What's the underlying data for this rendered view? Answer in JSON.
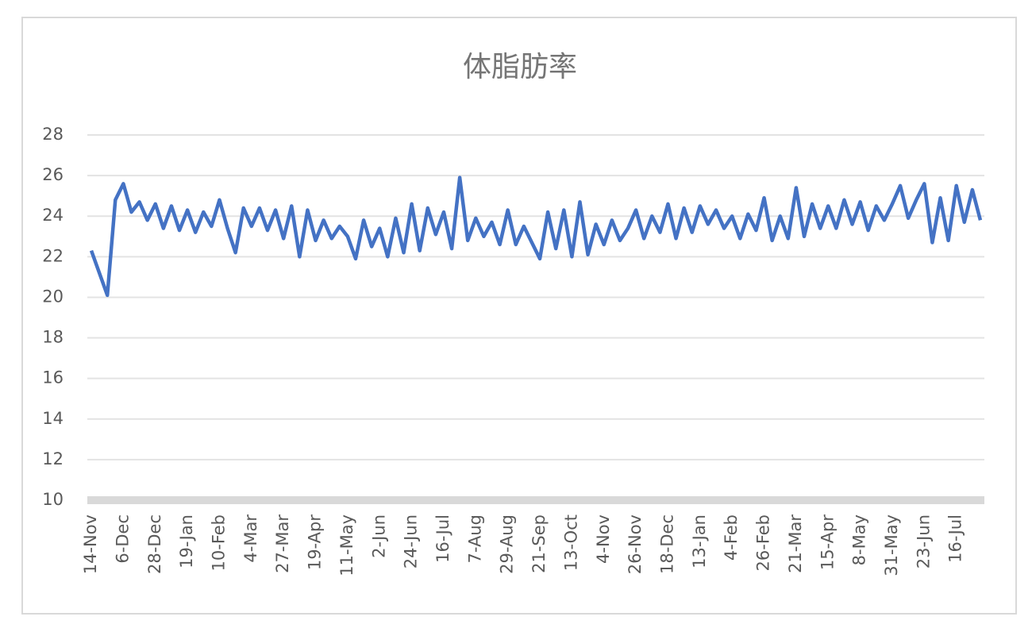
{
  "chart_data": {
    "type": "line",
    "title": "体脂肪率",
    "categories": [
      "14-Nov",
      null,
      null,
      null,
      "6-Dec",
      null,
      null,
      null,
      "28-Dec",
      null,
      null,
      null,
      "19-Jan",
      null,
      null,
      null,
      "10-Feb",
      null,
      null,
      null,
      "4-Mar",
      null,
      null,
      null,
      "27-Mar",
      null,
      null,
      null,
      "19-Apr",
      null,
      null,
      null,
      "11-May",
      null,
      null,
      null,
      "2-Jun",
      null,
      null,
      null,
      "24-Jun",
      null,
      null,
      null,
      "16-Jul",
      null,
      null,
      null,
      "7-Aug",
      null,
      null,
      null,
      "29-Aug",
      null,
      null,
      null,
      "21-Sep",
      null,
      null,
      null,
      "13-Oct",
      null,
      null,
      null,
      "4-Nov",
      null,
      null,
      null,
      "26-Nov",
      null,
      null,
      null,
      "18-Dec",
      null,
      null,
      null,
      "13-Jan",
      null,
      null,
      null,
      "4-Feb",
      null,
      null,
      null,
      "26-Feb",
      null,
      null,
      null,
      "21-Mar",
      null,
      null,
      null,
      "15-Apr",
      null,
      null,
      null,
      "8-May",
      null,
      null,
      null,
      "31-May",
      null,
      null,
      null,
      "23-Jun",
      null,
      null,
      null,
      "16-Jul",
      null,
      null,
      null
    ],
    "series": [
      {
        "color": "#4472c4",
        "values": [
          22.3,
          21.2,
          20.1,
          24.8,
          25.6,
          24.2,
          24.7,
          23.8,
          24.6,
          23.4,
          24.5,
          23.3,
          24.3,
          23.2,
          24.2,
          23.5,
          24.8,
          23.4,
          22.2,
          24.4,
          23.5,
          24.4,
          23.3,
          24.3,
          22.9,
          24.5,
          22.0,
          24.3,
          22.8,
          23.8,
          22.9,
          23.5,
          23.0,
          21.9,
          23.8,
          22.5,
          23.4,
          22.0,
          23.9,
          22.2,
          24.6,
          22.3,
          24.4,
          23.1,
          24.2,
          22.4,
          25.9,
          22.8,
          23.9,
          23.0,
          23.7,
          22.6,
          24.3,
          22.6,
          23.5,
          22.7,
          21.9,
          24.2,
          22.4,
          24.3,
          22.0,
          24.7,
          22.1,
          23.6,
          22.6,
          23.8,
          22.8,
          23.4,
          24.3,
          22.9,
          24.0,
          23.2,
          24.6,
          22.9,
          24.4,
          23.2,
          24.5,
          23.6,
          24.3,
          23.4,
          24.0,
          22.9,
          24.1,
          23.3,
          24.9,
          22.8,
          24.0,
          22.9,
          25.4,
          23.0,
          24.6,
          23.4,
          24.5,
          23.4,
          24.8,
          23.6,
          24.7,
          23.3,
          24.5,
          23.8,
          24.6,
          25.5,
          23.9,
          24.8,
          25.6,
          22.7,
          24.9,
          22.8,
          25.5,
          23.7,
          25.3,
          23.8
        ]
      }
    ],
    "ylim": [
      10,
      28
    ],
    "yticks": [
      10,
      12,
      14,
      16,
      18,
      20,
      22,
      24,
      26,
      28
    ],
    "grid": true
  }
}
